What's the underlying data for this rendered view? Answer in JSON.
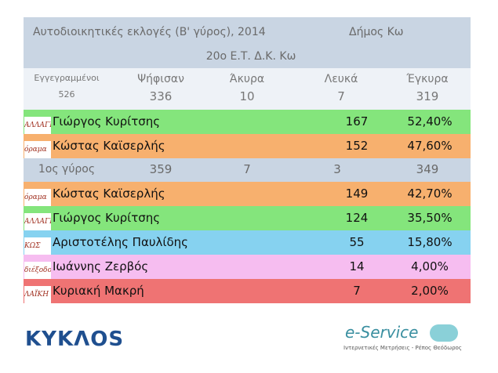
{
  "header": {
    "title": "Αυτοδιοικητικές εκλογές (Β' γύρος), 2014",
    "municipality": "Δήμος Κω",
    "station": "20ο Ε.Τ. Δ.Κ. Κω"
  },
  "summary": {
    "labels": [
      "Εγγεγραμμένοι",
      "Ψήφισαν",
      "Άκυρα",
      "Λευκά",
      "Έγκυρα"
    ],
    "values": [
      526,
      336,
      10,
      7,
      319
    ]
  },
  "round2": {
    "rows": [
      {
        "logo": "ΑΛΛΑΓΗΣ",
        "name": "Γιώργος Κυρίτσης",
        "votes": 167,
        "percent": "52,40%"
      },
      {
        "logo": "όραμα",
        "name": "Κώστας Καϊσερλής",
        "votes": 152,
        "percent": "47,60%"
      }
    ]
  },
  "round1": {
    "label": "1ος γύρος",
    "values": [
      359,
      7,
      3,
      349
    ],
    "rows": [
      {
        "logo": "όραμα",
        "name": "Κώστας Καϊσερλής",
        "votes": 149,
        "percent": "42,70%"
      },
      {
        "logo": "ΑΛΛΑΓΗΣ",
        "name": "Γιώργος Κυρίτσης",
        "votes": 124,
        "percent": "35,50%"
      },
      {
        "logo": "ΚΩΣ",
        "name": "Αριστοτέλης Παυλίδης",
        "votes": 55,
        "percent": "15,80%"
      },
      {
        "logo": "διέξοδος",
        "name": "Ιωάννης Ζερβός",
        "votes": 14,
        "percent": "4,00%"
      },
      {
        "logo": "ΛΑΪΚΗ ΣΥΣΠΕΙΡΩΣΗ",
        "name": "Κυριακή Μακρή",
        "votes": 7,
        "percent": "2,00%"
      }
    ]
  },
  "footer": {
    "left_logo": "ΚΥΚΛΟS",
    "right_logo": "e-Service",
    "right_caption": "Ιντερνετικές Μετρήσεις - Ρέπος Θεόδωρος"
  }
}
